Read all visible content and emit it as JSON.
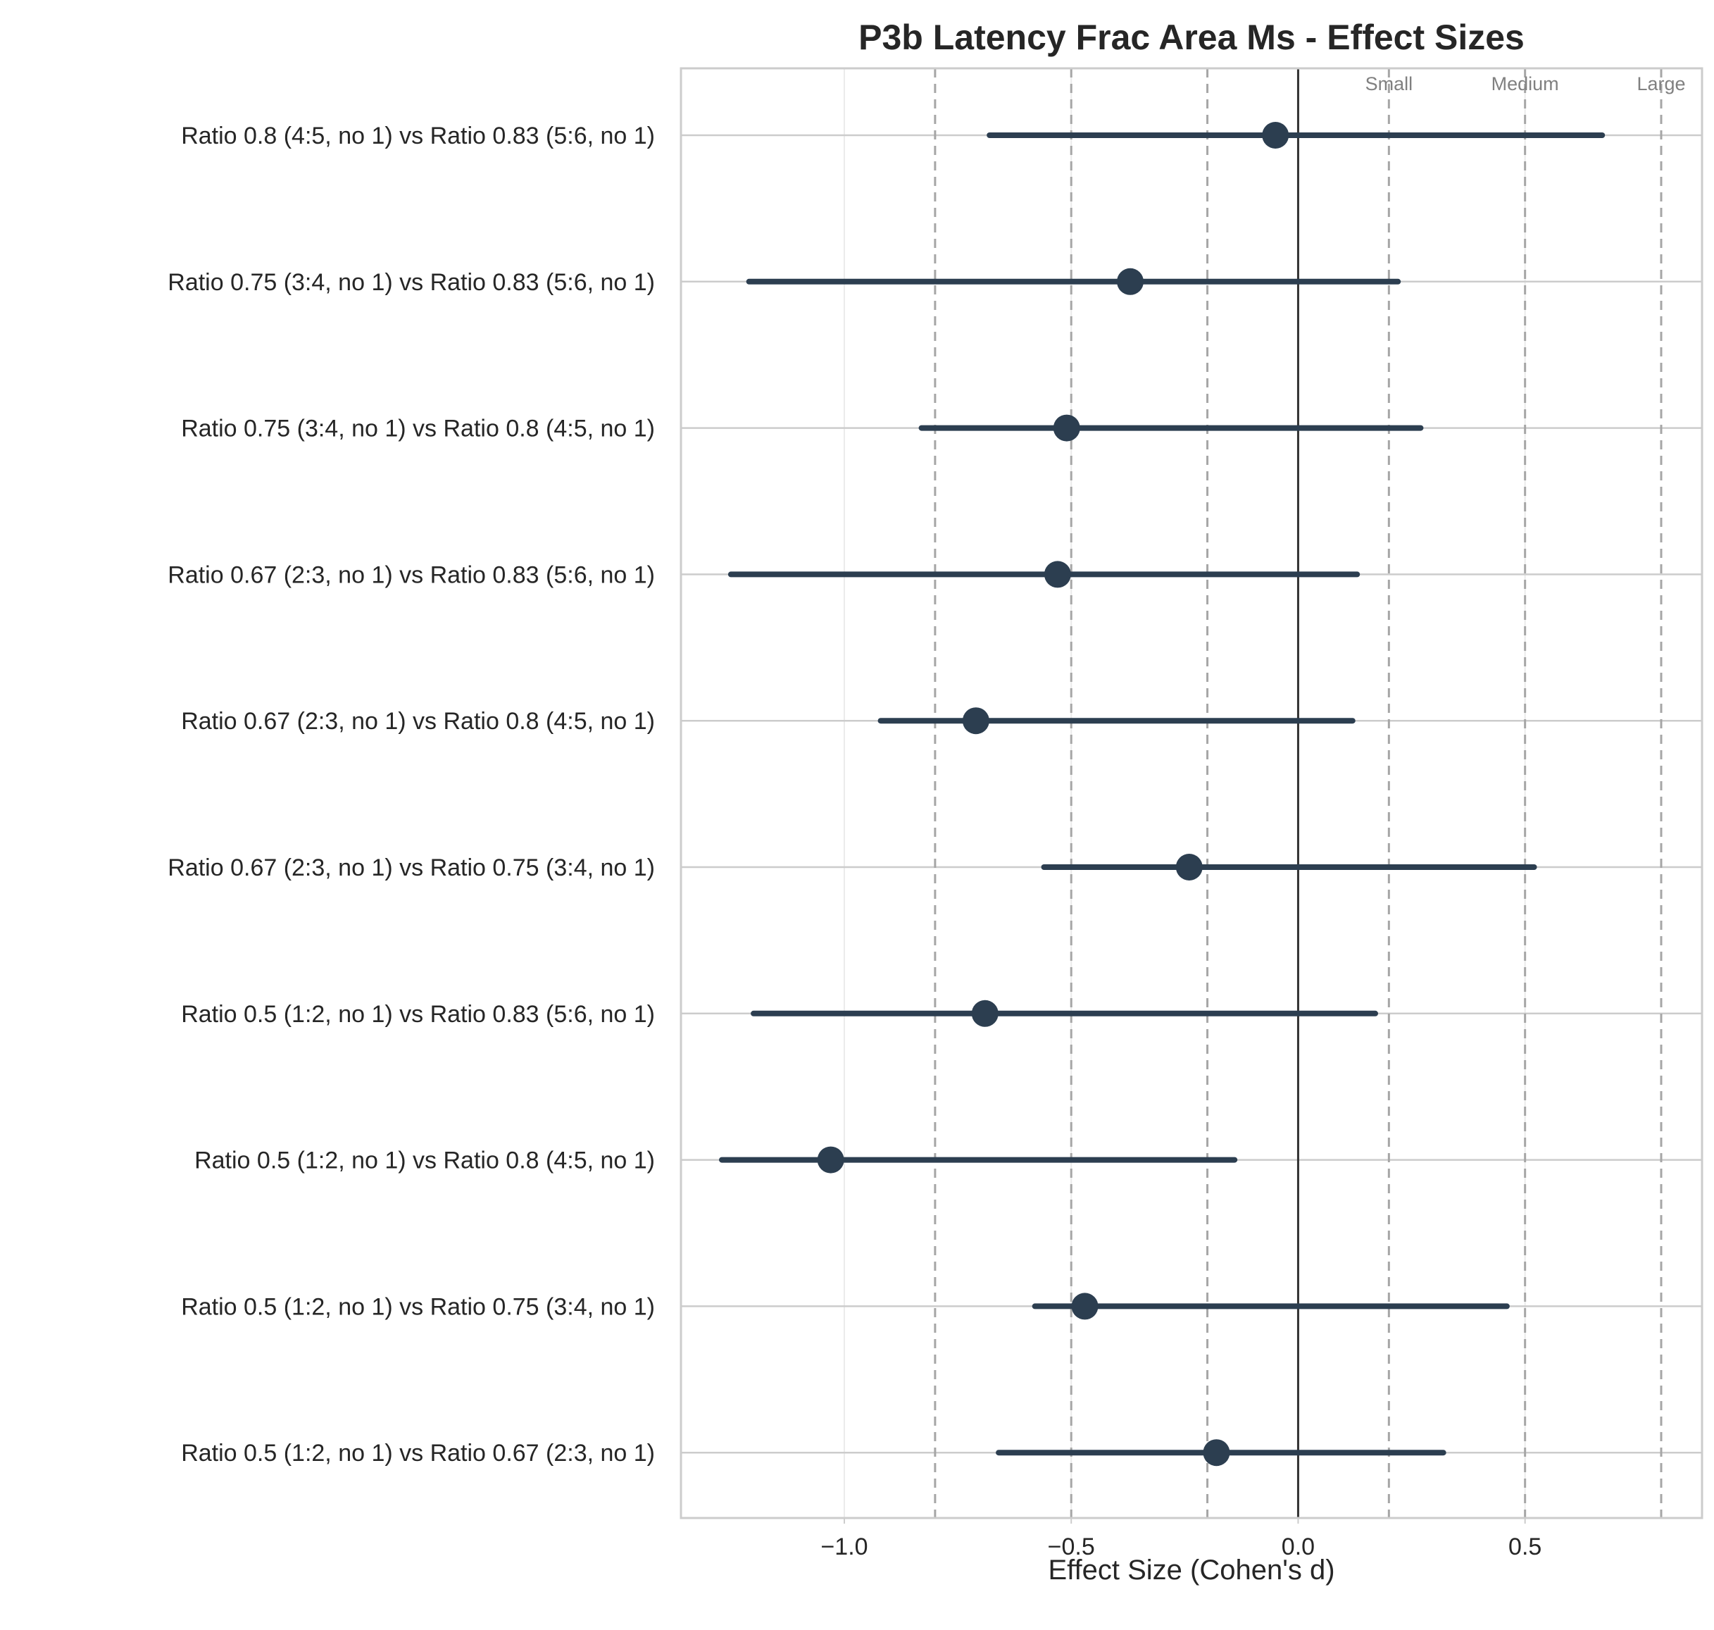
{
  "chart_data": {
    "type": "forest",
    "title": "P3b Latency Frac Area Ms - Effect Sizes",
    "xlabel": "Effect Size (Cohen's d)",
    "ylabel": "",
    "xlim": [
      -1.36,
      0.89
    ],
    "xticks": [
      -1.0,
      -0.5,
      0.0,
      0.5
    ],
    "xtick_labels": [
      "−1.0",
      "−0.5",
      "0.0",
      "0.5"
    ],
    "grid": true,
    "marker_color": "#2c3e50",
    "zero_line_color": "#333333",
    "reference_lines": [
      {
        "label": "Small",
        "value": 0.2
      },
      {
        "label": "Medium",
        "value": 0.5
      },
      {
        "label": "Large",
        "value": 0.8
      },
      {
        "label": "",
        "value": -0.2
      },
      {
        "label": "",
        "value": -0.5
      },
      {
        "label": "",
        "value": -0.8
      }
    ],
    "comparisons": [
      {
        "label": "Ratio 0.8 (4:5, no 1) vs Ratio 0.83 (5:6, no 1)",
        "d": -0.05,
        "ci_low": -0.68,
        "ci_high": 0.67
      },
      {
        "label": "Ratio 0.75 (3:4, no 1) vs Ratio 0.83 (5:6, no 1)",
        "d": -0.37,
        "ci_low": -1.21,
        "ci_high": 0.22
      },
      {
        "label": "Ratio 0.75 (3:4, no 1) vs Ratio 0.8 (4:5, no 1)",
        "d": -0.51,
        "ci_low": -0.83,
        "ci_high": 0.27
      },
      {
        "label": "Ratio 0.67 (2:3, no 1) vs Ratio 0.83 (5:6, no 1)",
        "d": -0.53,
        "ci_low": -1.25,
        "ci_high": 0.13
      },
      {
        "label": "Ratio 0.67 (2:3, no 1) vs Ratio 0.8 (4:5, no 1)",
        "d": -0.71,
        "ci_low": -0.92,
        "ci_high": 0.12
      },
      {
        "label": "Ratio 0.67 (2:3, no 1) vs Ratio 0.75 (3:4, no 1)",
        "d": -0.24,
        "ci_low": -0.56,
        "ci_high": 0.52
      },
      {
        "label": "Ratio 0.5 (1:2, no 1) vs Ratio 0.83 (5:6, no 1)",
        "d": -0.69,
        "ci_low": -1.2,
        "ci_high": 0.17
      },
      {
        "label": "Ratio 0.5 (1:2, no 1) vs Ratio 0.8 (4:5, no 1)",
        "d": -1.03,
        "ci_low": -1.27,
        "ci_high": -0.14
      },
      {
        "label": "Ratio 0.5 (1:2, no 1) vs Ratio 0.75 (3:4, no 1)",
        "d": -0.47,
        "ci_low": -0.58,
        "ci_high": 0.46
      },
      {
        "label": "Ratio 0.5 (1:2, no 1) vs Ratio 0.67 (2:3, no 1)",
        "d": -0.18,
        "ci_low": -0.66,
        "ci_high": 0.32
      }
    ]
  }
}
